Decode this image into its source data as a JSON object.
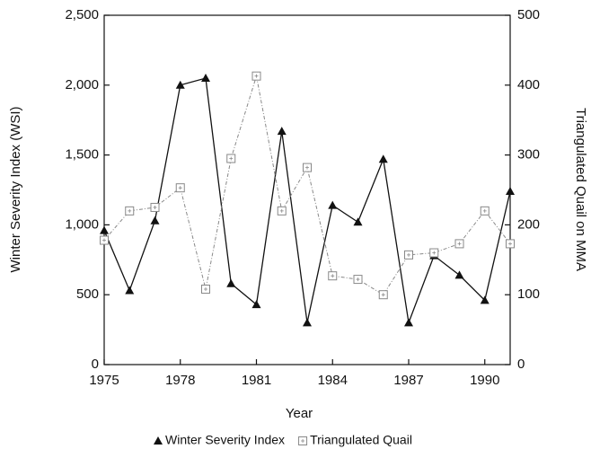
{
  "chart_data": {
    "type": "line",
    "x": [
      1975,
      1976,
      1977,
      1978,
      1979,
      1980,
      1981,
      1982,
      1983,
      1984,
      1985,
      1986,
      1987,
      1988,
      1989,
      1990,
      1991
    ],
    "series": [
      {
        "name": "Winter Severity Index",
        "color": "#111111",
        "axis": "y",
        "marker": "triangle",
        "values": [
          960,
          530,
          1030,
          2000,
          2050,
          580,
          430,
          1670,
          300,
          1140,
          1020,
          1470,
          300,
          780,
          640,
          460,
          1240
        ]
      },
      {
        "name": "Triangulated Quail",
        "color": "#888888",
        "axis": "y2",
        "marker": "square",
        "values": [
          178,
          220,
          225,
          253,
          108,
          295,
          413,
          220,
          282,
          127,
          122,
          100,
          157,
          160,
          173,
          220,
          173
        ]
      }
    ],
    "xlabel": "Year",
    "ylabel": "Winter Severity Index (WSI)",
    "y2label": "Triangulated Quail on MMA",
    "xlim": [
      1975,
      1991
    ],
    "xticks": [
      1975,
      1978,
      1981,
      1984,
      1987,
      1990
    ],
    "ylim": [
      0,
      2500
    ],
    "yticks": [
      0,
      500,
      {
        "value": 1000,
        "label": "1,000"
      },
      {
        "value": 1500,
        "label": "1,500"
      },
      {
        "value": 2000,
        "label": "2,000"
      },
      {
        "value": 2500,
        "label": "2,500"
      }
    ],
    "y2lim": [
      0,
      500
    ],
    "y2ticks": [
      0,
      100,
      200,
      300,
      400,
      500
    ],
    "legend": "bottom"
  }
}
